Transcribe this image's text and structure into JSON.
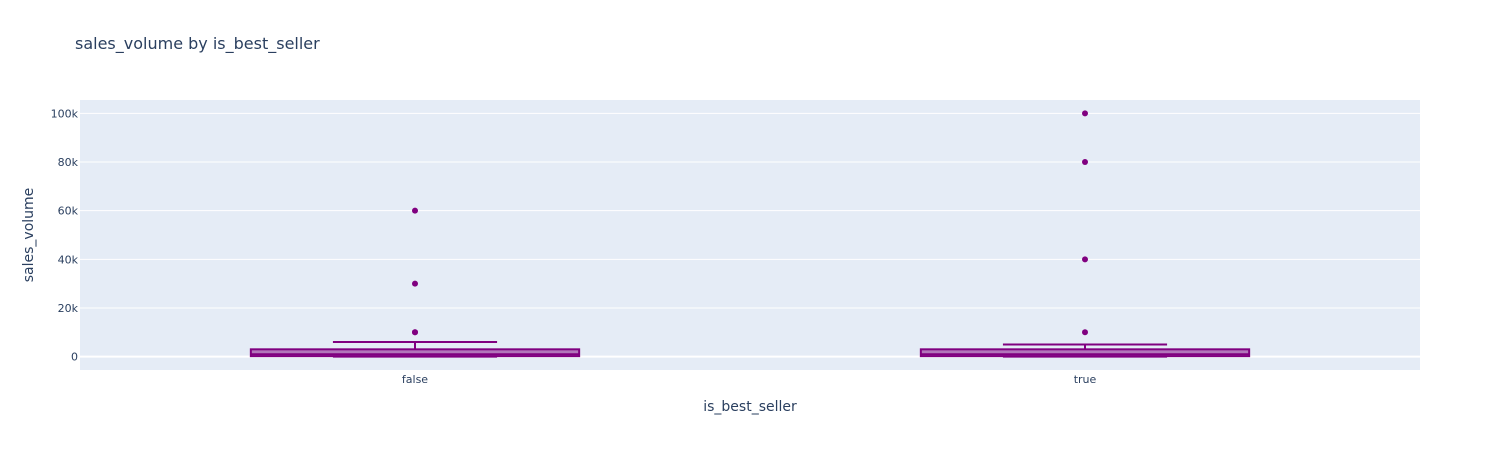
{
  "chart_data": {
    "type": "box",
    "title": "sales_volume by is_best_seller",
    "xlabel": "is_best_seller",
    "ylabel": "sales_volume",
    "categories": [
      "false",
      "true"
    ],
    "ylim": [
      -5500,
      105500
    ],
    "yticks": [
      0,
      20000,
      40000,
      60000,
      80000,
      100000
    ],
    "ytick_labels": [
      "0",
      "20k",
      "40k",
      "60k",
      "80k",
      "100k"
    ],
    "grid": true,
    "color": "#800080",
    "boxes": [
      {
        "category": "false",
        "min": 0,
        "q1": 200,
        "median": 1000,
        "q3": 3000,
        "max": 6000,
        "outliers": [
          10000,
          10000,
          30000,
          60000
        ]
      },
      {
        "category": "true",
        "min": 0,
        "q1": 200,
        "median": 1000,
        "q3": 3000,
        "max": 5000,
        "outliers": [
          10000,
          40000,
          80000,
          100000
        ]
      }
    ]
  }
}
